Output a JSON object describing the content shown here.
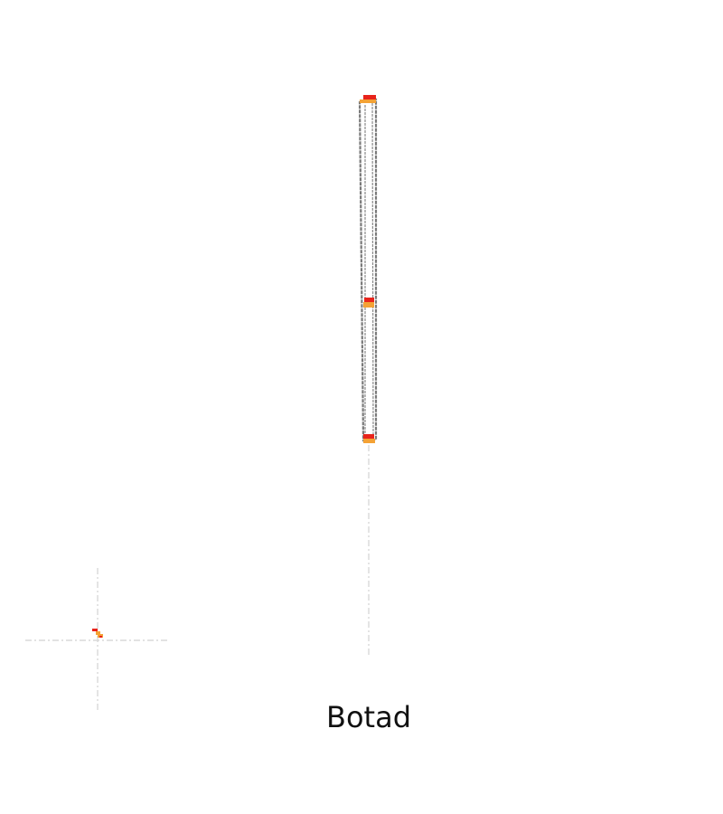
{
  "map": {
    "title": "Botad",
    "colors": {
      "background": "#ffffff",
      "route_outline": "#7a7a7a",
      "route_fill": "#ffffff",
      "guide_line": "#d8d8d8",
      "marker_primary": "#e8231b",
      "marker_secondary": "#f4a235"
    },
    "icons": {
      "crosshair": "crosshair-icon",
      "location_marker": "location-marker-icon"
    }
  }
}
